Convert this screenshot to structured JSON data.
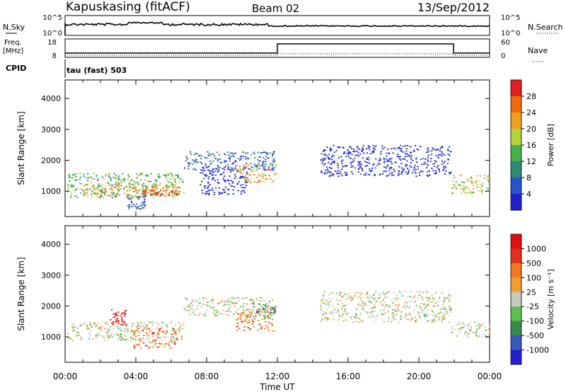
{
  "header": {
    "station": "Kapuskasing (fitACF)",
    "beam": "Beam 02",
    "date": "13/Sep/2012"
  },
  "noise_panel": {
    "left_label": "N.Sky",
    "right_label": "N.Search",
    "ticks": [
      "10^5",
      "10^0"
    ]
  },
  "freq_panel": {
    "left_label_1": "Freq.",
    "left_label_2": "[MHz]",
    "left_ticks": [
      "18",
      "8"
    ],
    "right_label": "Nave",
    "right_ticks": [
      "60",
      "0"
    ]
  },
  "cpid": {
    "label": "CPID",
    "value": "tau (fast) 503"
  },
  "colors": {
    "power": [
      "#2222cc",
      "#2a55c8",
      "#2e8a74",
      "#46b04c",
      "#b4d23c",
      "#f0a020",
      "#f06a10",
      "#e02020"
    ],
    "velocity": [
      "#2222cc",
      "#3a5ab8",
      "#3a8a4a",
      "#5cc050",
      "#c8c8c0",
      "#f0a030",
      "#f07820",
      "#e03020",
      "#e01010"
    ]
  },
  "chart_data": [
    {
      "type": "heatmap",
      "title": "Power",
      "xlabel": "Time UT",
      "ylabel": "Slant Range [km]",
      "x_ticks": [
        "00:00",
        "04:00",
        "08:00",
        "12:00",
        "16:00",
        "20:00",
        "00:00"
      ],
      "xlim_hours": [
        0,
        24
      ],
      "ylim_km": [
        180,
        4600
      ],
      "y_ticks": [
        1000,
        2000,
        3000,
        4000
      ],
      "colorbar": {
        "label": "Power [dB]",
        "ticks": [
          "28",
          "24",
          "20",
          "16",
          "12",
          "8",
          "4"
        ],
        "range": [
          0,
          32
        ]
      },
      "regions": [
        {
          "t0": 0.1,
          "t1": 6.7,
          "r0": 800,
          "r1": 1600,
          "level": 3
        },
        {
          "t0": 1.0,
          "t1": 6.5,
          "r0": 850,
          "r1": 1250,
          "level": 5
        },
        {
          "t0": 4.3,
          "t1": 6.3,
          "r0": 880,
          "r1": 1050,
          "level": 7
        },
        {
          "t0": 3.5,
          "t1": 4.5,
          "r0": 450,
          "r1": 900,
          "level": 1
        },
        {
          "t0": 6.7,
          "t1": 11.9,
          "r0": 1700,
          "r1": 2300,
          "level": 1
        },
        {
          "t0": 7.6,
          "t1": 10.3,
          "r0": 900,
          "r1": 1800,
          "level": 0
        },
        {
          "t0": 9.6,
          "t1": 11.9,
          "r0": 1300,
          "r1": 1900,
          "level": 5
        },
        {
          "t0": 14.4,
          "t1": 21.8,
          "r0": 1500,
          "r1": 2500,
          "level": 0
        },
        {
          "t0": 21.8,
          "t1": 24,
          "r0": 950,
          "r1": 1550,
          "level": 4
        }
      ]
    },
    {
      "type": "heatmap",
      "title": "Velocity",
      "xlabel": "Time UT",
      "ylabel": "Slant Range [km]",
      "x_ticks": [
        "00:00",
        "04:00",
        "08:00",
        "12:00",
        "16:00",
        "20:00",
        "00:00"
      ],
      "xlim_hours": [
        0,
        24
      ],
      "ylim_km": [
        180,
        4600
      ],
      "y_ticks": [
        1000,
        2000,
        3000,
        4000
      ],
      "colorbar": {
        "label": "Velocity [m s^-1]",
        "ticks": [
          "1000",
          "500",
          "100",
          "25",
          "-25",
          "-100",
          "-500",
          "-1000"
        ],
        "range": [
          -1000,
          1000
        ]
      },
      "regions": [
        {
          "t0": 0.1,
          "t1": 6.7,
          "r0": 900,
          "r1": 1500,
          "level": 4
        },
        {
          "t0": 2.5,
          "t1": 3.4,
          "r0": 1400,
          "r1": 1900,
          "level": 8
        },
        {
          "t0": 3.8,
          "t1": 6.3,
          "r0": 650,
          "r1": 1300,
          "level": 6
        },
        {
          "t0": 6.7,
          "t1": 11.9,
          "r0": 1700,
          "r1": 2300,
          "level": 4
        },
        {
          "t0": 9.6,
          "t1": 11.9,
          "r0": 1200,
          "r1": 1900,
          "level": 6
        },
        {
          "t0": 10.6,
          "t1": 11.9,
          "r0": 1600,
          "r1": 2100,
          "level": 2
        },
        {
          "t0": 14.4,
          "t1": 21.8,
          "r0": 1500,
          "r1": 2500,
          "level": 4
        },
        {
          "t0": 21.8,
          "t1": 24,
          "r0": 1000,
          "r1": 1500,
          "level": 4
        }
      ]
    }
  ]
}
